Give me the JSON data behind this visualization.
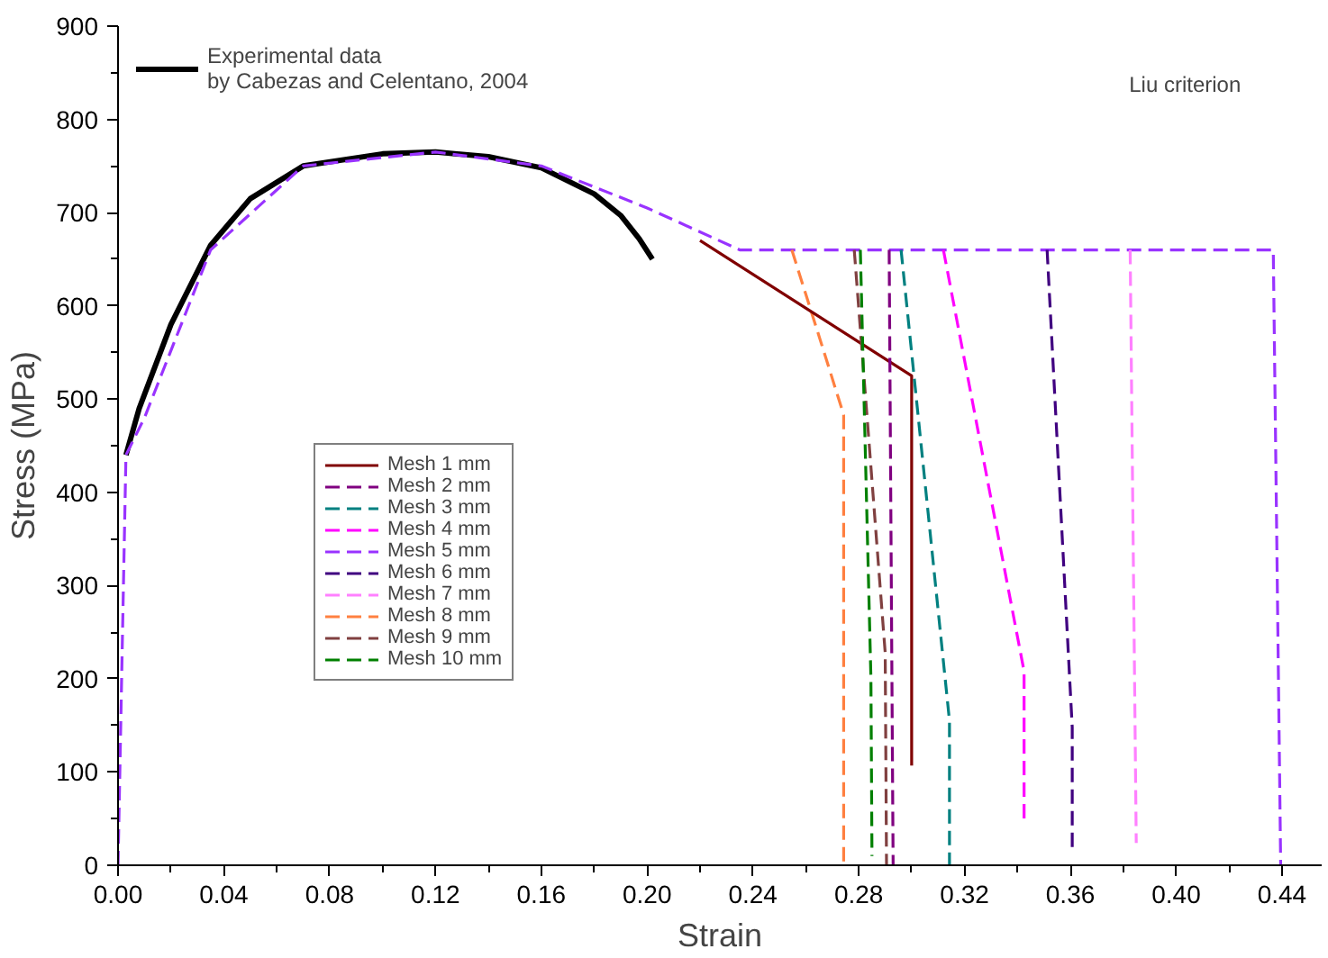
{
  "chart_data": {
    "type": "line",
    "xlabel": "Strain",
    "ylabel": "Stress (MPa)",
    "xlim": [
      0,
      0.455
    ],
    "ylim": [
      0,
      900
    ],
    "xticks": [
      {
        "value": 0,
        "label": "0.00"
      },
      {
        "value": 0.04,
        "label": "0.04"
      },
      {
        "value": 0.08,
        "label": "0.08"
      },
      {
        "value": 0.12,
        "label": "0.12"
      },
      {
        "value": 0.16,
        "label": "0.16"
      },
      {
        "value": 0.2,
        "label": "0.20"
      },
      {
        "value": 0.24,
        "label": "0.24"
      },
      {
        "value": 0.28,
        "label": "0.28"
      },
      {
        "value": 0.32,
        "label": "0.32"
      },
      {
        "value": 0.36,
        "label": "0.36"
      },
      {
        "value": 0.4,
        "label": "0.40"
      },
      {
        "value": 0.44,
        "label": "0.44"
      }
    ],
    "yticks": [
      0,
      100,
      200,
      300,
      400,
      500,
      600,
      700,
      800,
      900
    ],
    "grid": false,
    "legend": "left",
    "marker": "none",
    "annotations": [
      "Liu criterion"
    ],
    "series": [
      {
        "name": "Experimental data\nby Cabezas and Celentano, 2004",
        "color": "#000000",
        "line_style": "solid",
        "x": [
          0.003,
          0.008,
          0.02,
          0.035,
          0.05,
          0.07,
          0.1,
          0.12,
          0.14,
          0.16,
          0.18,
          0.19,
          0.197,
          0.202
        ],
        "values": [
          440,
          490,
          580,
          665,
          715,
          750,
          763,
          765,
          760,
          748,
          720,
          697,
          672,
          650
        ]
      },
      {
        "name": "Mesh 1 mm",
        "color": "#800000",
        "line_style": "solid",
        "x": [
          0.22,
          0.3,
          0.3
        ],
        "values": [
          670,
          525,
          107
        ]
      },
      {
        "name": "Mesh 2 mm",
        "color": "#800080",
        "line_style": "dashed",
        "x": [
          0.2915,
          0.293
        ],
        "values": [
          660,
          0
        ]
      },
      {
        "name": "Mesh 3 mm",
        "color": "#008080",
        "line_style": "dashed",
        "x": [
          0.296,
          0.3143,
          0.3143
        ],
        "values": [
          660,
          155,
          0
        ]
      },
      {
        "name": "Mesh 4 mm",
        "color": "#ff00ff",
        "line_style": "dashed",
        "x": [
          0.312,
          0.3425,
          0.3425
        ],
        "values": [
          660,
          208,
          44
        ]
      },
      {
        "name": "Mesh 5 mm",
        "color": "#9933ff",
        "line_style": "dashed",
        "x": [
          0,
          0.003,
          0.01,
          0.035,
          0.07,
          0.12,
          0.16,
          0.2,
          0.235,
          0.4367,
          0.4395
        ],
        "values": [
          0,
          440,
          480,
          660,
          750,
          765,
          750,
          705,
          660,
          660,
          0
        ]
      },
      {
        "name": "Mesh 6 mm",
        "color": "#400080",
        "line_style": "dashed",
        "x": [
          0.3512,
          0.3607,
          0.3607
        ],
        "values": [
          660,
          148,
          17
        ]
      },
      {
        "name": "Mesh 7 mm",
        "color": "#ff80ff",
        "line_style": "dashed",
        "x": [
          0.3826,
          0.3849
        ],
        "values": [
          660,
          24
        ]
      },
      {
        "name": "Mesh 8 mm",
        "color": "#ff8040",
        "line_style": "dashed",
        "x": [
          0.2547,
          0.2677,
          0.2743,
          0.2743
        ],
        "values": [
          660,
          543,
          483,
          0
        ]
      },
      {
        "name": "Mesh 9 mm",
        "color": "#804040",
        "line_style": "dashed",
        "x": [
          0.2783,
          0.29,
          0.2905
        ],
        "values": [
          660,
          228,
          0
        ]
      },
      {
        "name": "Mesh 10 mm",
        "color": "#008000",
        "line_style": "dashed",
        "x": [
          0.2806,
          0.2846,
          0.285
        ],
        "values": [
          660,
          201,
          10
        ]
      }
    ]
  }
}
